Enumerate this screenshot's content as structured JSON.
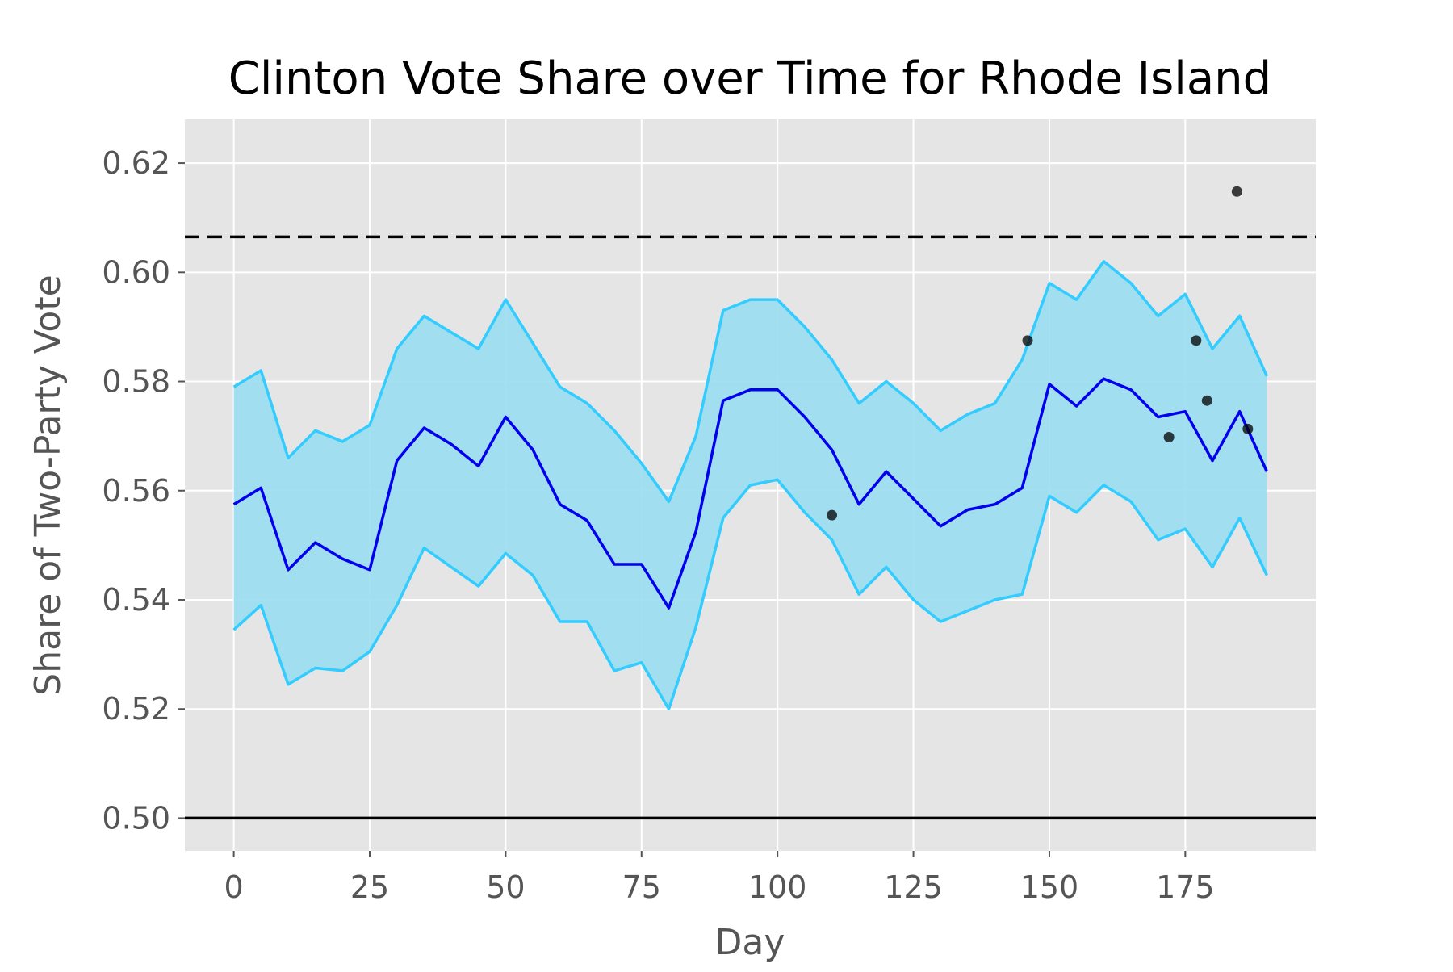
{
  "chart_data": {
    "type": "line",
    "title": "Clinton Vote Share over Time for Rhode Island",
    "xlabel": "Day",
    "ylabel": "Share of Two-Party Vote",
    "xlim": [
      -9,
      199
    ],
    "ylim": [
      0.494,
      0.628
    ],
    "x_ticks": [
      0,
      25,
      50,
      75,
      100,
      125,
      150,
      175
    ],
    "y_ticks": [
      0.5,
      0.52,
      0.54,
      0.56,
      0.58,
      0.6,
      0.62
    ],
    "grid": true,
    "legend": "none",
    "colors": {
      "background": "#e5e5e5",
      "mean_line": "#0000ee",
      "band_edge": "#33ccff",
      "band_fill": "#99ddf0",
      "reference": "#000000",
      "poll_point": "#000000"
    },
    "reference_lines": [
      {
        "y": 0.6065,
        "style": "dashed"
      },
      {
        "y": 0.5,
        "style": "solid"
      }
    ],
    "mean_series": {
      "x": [
        0,
        5,
        10,
        15,
        20,
        25,
        30,
        35,
        40,
        45,
        50,
        55,
        60,
        65,
        70,
        75,
        80,
        85,
        90,
        95,
        100,
        105,
        110,
        115,
        120,
        125,
        130,
        135,
        140,
        145,
        150,
        155,
        160,
        165,
        170,
        175,
        180,
        185,
        190
      ],
      "values": [
        0.5575,
        0.5605,
        0.5455,
        0.5505,
        0.5475,
        0.5455,
        0.5655,
        0.5715,
        0.5685,
        0.5645,
        0.5735,
        0.5675,
        0.5575,
        0.5545,
        0.5465,
        0.5465,
        0.5385,
        0.5525,
        0.5765,
        0.5785,
        0.5785,
        0.5735,
        0.5675,
        0.5575,
        0.5635,
        0.5585,
        0.5535,
        0.5565,
        0.5575,
        0.5605,
        0.5795,
        0.5755,
        0.5805,
        0.5785,
        0.5735,
        0.5745,
        0.5655,
        0.5745,
        0.5635
      ]
    },
    "upper_band": {
      "x": [
        0,
        5,
        10,
        15,
        20,
        25,
        30,
        35,
        40,
        45,
        50,
        55,
        60,
        65,
        70,
        75,
        80,
        85,
        90,
        95,
        100,
        105,
        110,
        115,
        120,
        125,
        130,
        135,
        140,
        145,
        150,
        155,
        160,
        165,
        170,
        175,
        180,
        185,
        190
      ],
      "values": [
        0.579,
        0.582,
        0.566,
        0.571,
        0.569,
        0.572,
        0.586,
        0.592,
        0.589,
        0.586,
        0.595,
        0.587,
        0.579,
        0.576,
        0.571,
        0.565,
        0.558,
        0.57,
        0.593,
        0.595,
        0.595,
        0.59,
        0.584,
        0.576,
        0.58,
        0.576,
        0.571,
        0.574,
        0.576,
        0.584,
        0.598,
        0.595,
        0.602,
        0.598,
        0.592,
        0.596,
        0.586,
        0.592,
        0.581
      ]
    },
    "lower_band": {
      "x": [
        0,
        5,
        10,
        15,
        20,
        25,
        30,
        35,
        40,
        45,
        50,
        55,
        60,
        65,
        70,
        75,
        80,
        85,
        90,
        95,
        100,
        105,
        110,
        115,
        120,
        125,
        130,
        135,
        140,
        145,
        150,
        155,
        160,
        165,
        170,
        175,
        180,
        185,
        190
      ],
      "values": [
        0.5345,
        0.539,
        0.5245,
        0.5275,
        0.527,
        0.5305,
        0.539,
        0.5495,
        0.546,
        0.5425,
        0.5485,
        0.5445,
        0.536,
        0.536,
        0.527,
        0.5285,
        0.52,
        0.535,
        0.555,
        0.561,
        0.562,
        0.556,
        0.551,
        0.541,
        0.546,
        0.54,
        0.536,
        0.538,
        0.54,
        0.541,
        0.559,
        0.556,
        0.561,
        0.558,
        0.551,
        0.553,
        0.546,
        0.555,
        0.5445
      ]
    },
    "polls": {
      "x": [
        110,
        146,
        172,
        177,
        179,
        184.5,
        186.5
      ],
      "values": [
        0.5555,
        0.5875,
        0.5698,
        0.5875,
        0.5765,
        0.6148,
        0.5713
      ]
    }
  }
}
